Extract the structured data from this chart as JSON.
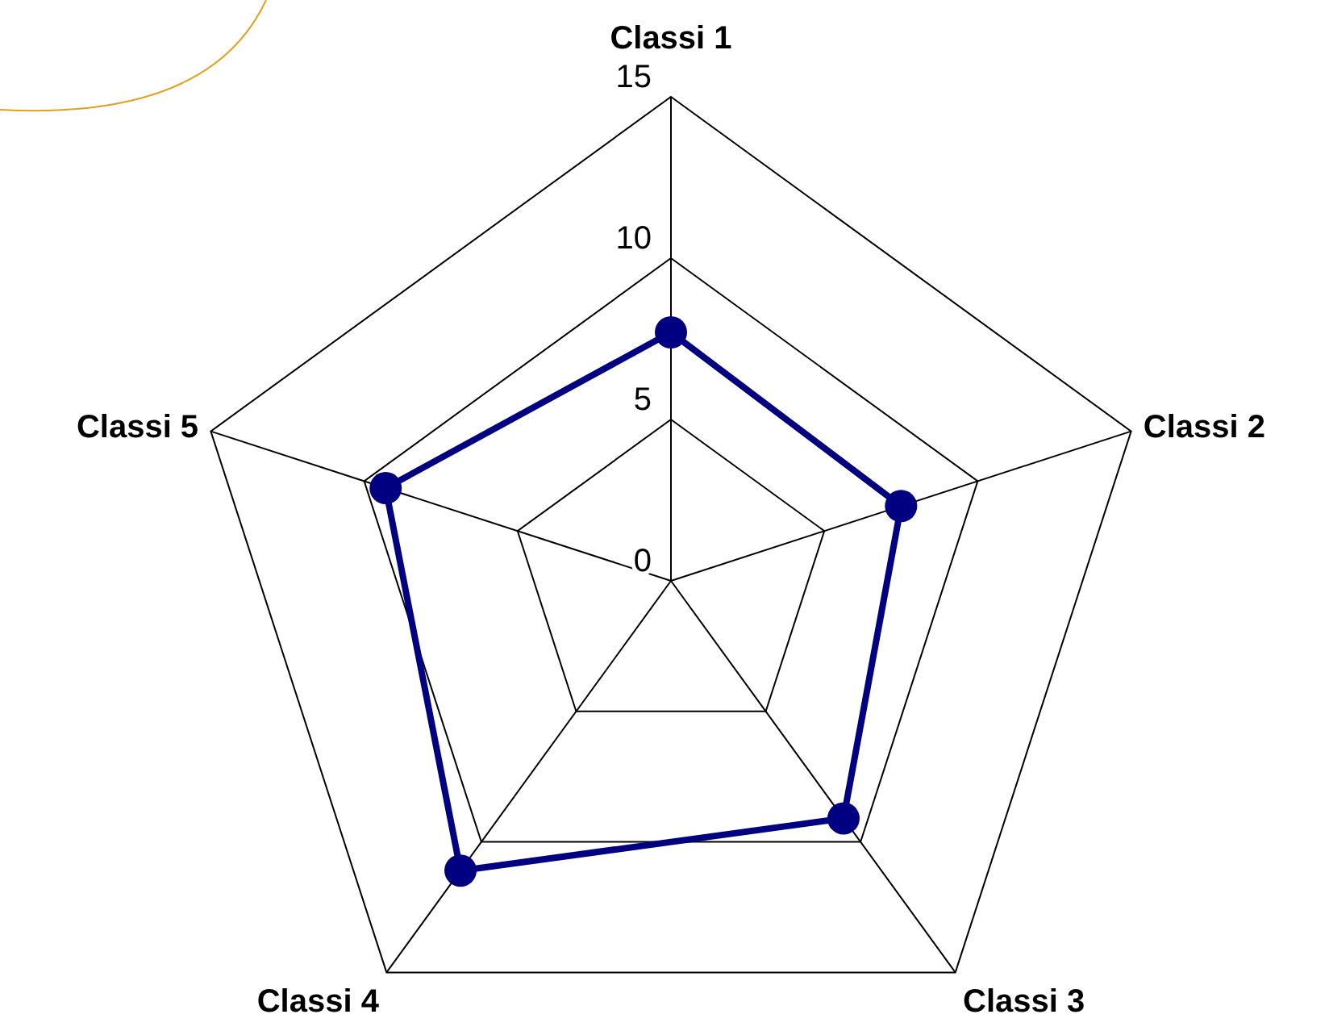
{
  "chart_data": {
    "type": "radar",
    "categories": [
      "Classi 1",
      "Classi 2",
      "Classi 3",
      "Classi 4",
      "Classi 5"
    ],
    "series": [
      {
        "color": "#000080",
        "values": [
          7.7,
          7.5,
          9.1,
          11.1,
          9.3
        ]
      }
    ],
    "ylim": [
      0,
      15
    ],
    "yticks": [
      0,
      5,
      10,
      15
    ],
    "grid": true,
    "marker": "circle",
    "legend": false
  }
}
